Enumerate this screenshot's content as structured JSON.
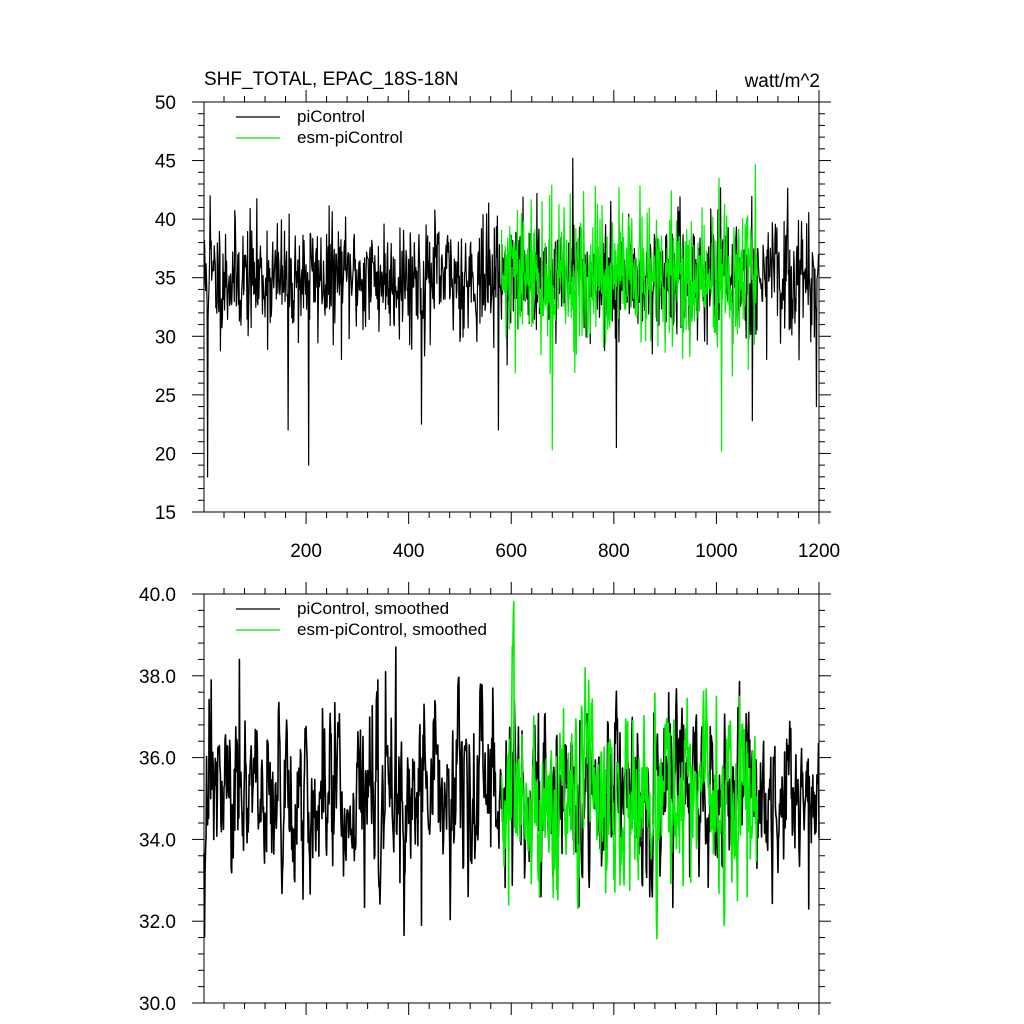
{
  "chart_data": [
    {
      "type": "line",
      "title": "SHF_TOTAL, EPAC_18S-18N",
      "units_label": "watt/m^2",
      "xlabel": "",
      "ylabel": "",
      "xlim": [
        1,
        1200
      ],
      "ylim": [
        15,
        50
      ],
      "x_ticks": [
        200,
        400,
        600,
        800,
        1000,
        1200
      ],
      "x_tick_labels": [
        "200",
        "400",
        "600",
        "800",
        "1000",
        "1200"
      ],
      "y_ticks": [
        15,
        20,
        25,
        30,
        35,
        40,
        45,
        50
      ],
      "y_tick_labels": [
        "15",
        "20",
        "25",
        "30",
        "35",
        "40",
        "45",
        "50"
      ],
      "legend_position": "top-left",
      "series": [
        {
          "name": "piControl",
          "color": "#000000",
          "x_range": [
            1,
            1200
          ],
          "mean": 35.0,
          "noise_amplitude": 5.5,
          "seed": 11,
          "notable_points": [
            [
              8,
              18
            ],
            [
              13,
              42
            ],
            [
              165,
              22
            ],
            [
              205,
              19
            ],
            [
              425,
              22.5
            ],
            [
              575,
              22
            ],
            [
              720,
              45.2
            ],
            [
              805,
              20.5
            ],
            [
              1070,
              22.8
            ],
            [
              1195,
              24
            ]
          ]
        },
        {
          "name": "esm-piControl",
          "color": "#00ee00",
          "x_range": [
            581,
            1080
          ],
          "mean": 34.8,
          "noise_amplitude": 6.8,
          "seed": 29,
          "notable_points": [
            [
              680,
              20.3
            ],
            [
              1010,
              20.2
            ],
            [
              810,
              42.7
            ],
            [
              660,
              41.5
            ]
          ]
        }
      ]
    },
    {
      "type": "line",
      "title": "",
      "xlabel": "",
      "ylabel": "",
      "xlim": [
        1,
        1200
      ],
      "ylim": [
        30,
        40
      ],
      "y_ticks": [
        30,
        32,
        34,
        36,
        38,
        40
      ],
      "y_tick_labels": [
        "30.0",
        "32.0",
        "34.0",
        "36.0",
        "38.0",
        "40.0"
      ],
      "legend_position": "top-left",
      "series": [
        {
          "name": "piControl, smoothed",
          "color": "#000000",
          "x_range": [
            1,
            1200
          ],
          "mean": 35.0,
          "noise_amplitude": 1.05,
          "seed": 47,
          "notable_points": [
            [
              15,
              37.9
            ],
            [
              70,
              38.4
            ],
            [
              340,
              37.9
            ],
            [
              355,
              38.1
            ],
            [
              375,
              38.7
            ],
            [
              425,
              31.9
            ],
            [
              870,
              32.6
            ],
            [
              1180,
              32.3
            ]
          ]
        },
        {
          "name": "esm-piControl, smoothed",
          "color": "#00ee00",
          "x_range": [
            581,
            1080
          ],
          "mean": 35.0,
          "noise_amplitude": 1.25,
          "seed": 83,
          "notable_points": [
            [
              595,
              32.4
            ],
            [
              1060,
              32.6
            ],
            [
              1000,
              37.5
            ],
            [
              1045,
              37.5
            ]
          ]
        }
      ]
    }
  ]
}
